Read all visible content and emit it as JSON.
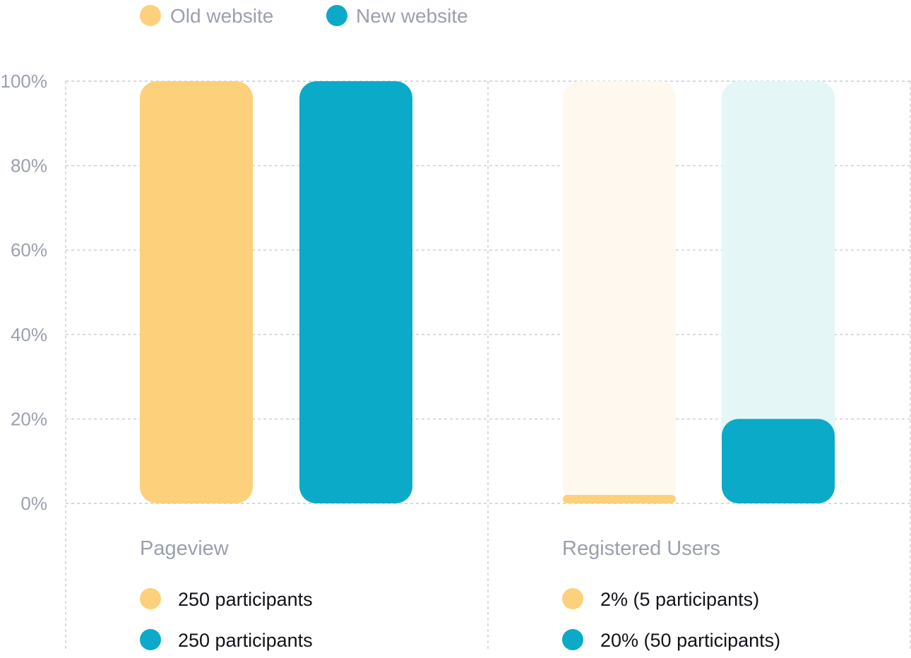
{
  "colors": {
    "old": "#FDD07C",
    "new": "#0BAAC8",
    "old_track": "#FFF8EF",
    "new_track": "#E4F6F6",
    "grid": "#C9CCD2",
    "muted_text": "#9AA0AD",
    "dark_text": "#111318"
  },
  "legend": [
    {
      "label": "Old website",
      "color": "#FDD07C"
    },
    {
      "label": "New website",
      "color": "#0BAAC8"
    }
  ],
  "chart_data": {
    "type": "bar",
    "title": "",
    "xlabel": "",
    "ylabel": "",
    "ylim": [
      0,
      100
    ],
    "y_ticks": [
      "100%",
      "80%",
      "60%",
      "40%",
      "20%",
      "0%"
    ],
    "y_tick_values": [
      100,
      80,
      60,
      40,
      20,
      0
    ],
    "grid": true,
    "legend_position": "top-left",
    "categories": [
      "Pageview",
      "Registered Users"
    ],
    "series": [
      {
        "name": "Old website",
        "values": [
          100,
          2
        ]
      },
      {
        "name": "New website",
        "values": [
          100,
          20
        ]
      }
    ],
    "annotations": [
      [
        "250 participants",
        "250 participants"
      ],
      [
        "2% (5 participants)",
        "20% (50 participants)"
      ]
    ]
  }
}
